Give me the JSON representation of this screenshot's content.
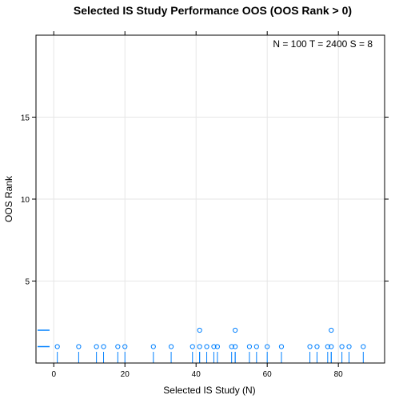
{
  "chart_data": {
    "type": "scatter",
    "title": "Selected IS Study Performance OOS (OOS Rank > 0)",
    "xlabel": "Selected IS Study (N)",
    "ylabel": "OOS Rank",
    "annotation": "N = 100  T = 2400  S = 8",
    "xlim": [
      -5,
      93
    ],
    "ylim": [
      0,
      20
    ],
    "x_ticks": [
      0,
      20,
      40,
      60,
      80
    ],
    "y_ticks": [
      5,
      10,
      15
    ],
    "grid": true,
    "point_color": "#0080ff",
    "points": [
      {
        "x": 1,
        "y": 1
      },
      {
        "x": 7,
        "y": 1
      },
      {
        "x": 12,
        "y": 1
      },
      {
        "x": 14,
        "y": 1
      },
      {
        "x": 18,
        "y": 1
      },
      {
        "x": 20,
        "y": 1
      },
      {
        "x": 28,
        "y": 1
      },
      {
        "x": 33,
        "y": 1
      },
      {
        "x": 39,
        "y": 1
      },
      {
        "x": 41,
        "y": 1
      },
      {
        "x": 41,
        "y": 2
      },
      {
        "x": 43,
        "y": 1
      },
      {
        "x": 45,
        "y": 1
      },
      {
        "x": 46,
        "y": 1
      },
      {
        "x": 50,
        "y": 1
      },
      {
        "x": 51,
        "y": 1
      },
      {
        "x": 51,
        "y": 2
      },
      {
        "x": 55,
        "y": 1
      },
      {
        "x": 57,
        "y": 1
      },
      {
        "x": 60,
        "y": 1
      },
      {
        "x": 64,
        "y": 1
      },
      {
        "x": 72,
        "y": 1
      },
      {
        "x": 74,
        "y": 1
      },
      {
        "x": 77,
        "y": 1
      },
      {
        "x": 78,
        "y": 1
      },
      {
        "x": 78,
        "y": 2
      },
      {
        "x": 81,
        "y": 1
      },
      {
        "x": 83,
        "y": 1
      },
      {
        "x": 87,
        "y": 1
      }
    ],
    "y_rug": [
      1,
      2
    ]
  }
}
